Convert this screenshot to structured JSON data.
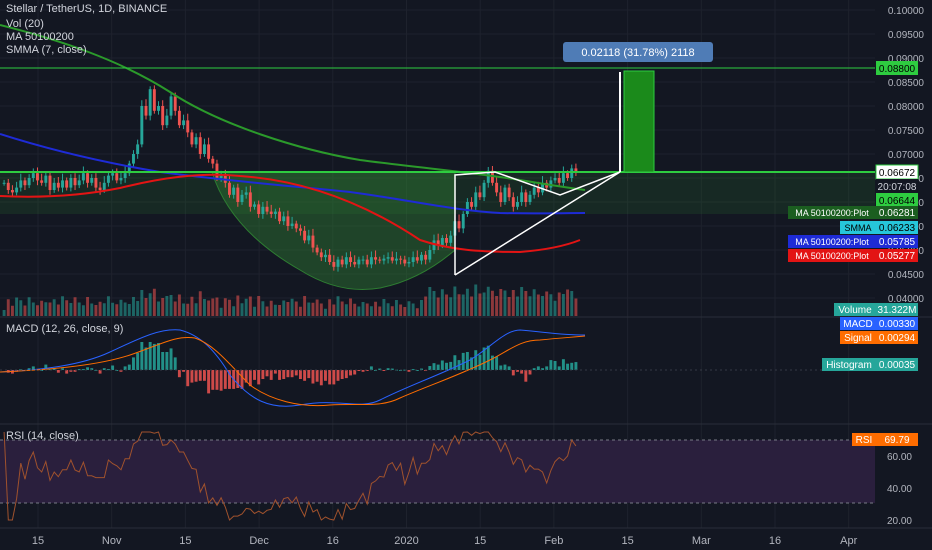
{
  "header": {
    "symbol_line": "Stellar / TetherUS, 1D, BINANCE",
    "vol_line": "Vol (20)",
    "ma_line": "MA 50100200",
    "smma_line": "SMMA (7, close)"
  },
  "macd_title": "MACD (12, 26, close, 9)",
  "rsi_title": "RSI (14, close)",
  "measure_tooltip": "0.02118 (31.78%) 2118",
  "colors": {
    "background": "#131722",
    "up": "#26a69a",
    "down": "#ef5350",
    "ma50": "#2b9a2b",
    "ma100": "#1e2bd6",
    "ma200": "#e31414",
    "resistance": "#2ecc40",
    "rsi_band": "#2a1f3d",
    "macd_line": "#2962ff",
    "signal_line": "#ff6d00"
  },
  "price_axis": {
    "ticks": [
      "0.10000",
      "0.09500",
      "0.09000",
      "0.08500",
      "0.08000",
      "0.07500",
      "0.07000",
      "0.06500",
      "0.06000",
      "0.05500",
      "0.05000",
      "0.04500",
      "0.04000"
    ]
  },
  "rsi_axis": {
    "ticks": [
      "60.00",
      "40.00",
      "20.00"
    ]
  },
  "time_axis": {
    "ticks": [
      "15",
      "Nov",
      "15",
      "Dec",
      "16",
      "2020",
      "15",
      "Feb",
      "15",
      "Mar",
      "16",
      "Apr"
    ]
  },
  "labels": {
    "target": "0.08800",
    "resistance": "0.06672",
    "countdown": "20:07:08",
    "current": "0.06644",
    "ma50_plot": "MA 50100200:Plot",
    "ma50_value": "0.06281",
    "smma": "SMMA",
    "smma_value": "0.06233",
    "ma100_plot": "MA 50100200:Plot",
    "ma100_value": "0.05785",
    "ma200_plot": "MA 50100200:Plot",
    "ma200_value": "0.05277",
    "volume": "Volume",
    "volume_value": "31.322M",
    "macd": "MACD",
    "macd_value": "0.00330",
    "signal": "Signal",
    "signal_value": "0.00294",
    "histogram": "Histogram",
    "histogram_value": "0.00035",
    "rsi": "RSI",
    "rsi_value": "69.79"
  },
  "chart_data": {
    "type": "candlestick",
    "title": "Stellar / TetherUS, 1D, BINANCE",
    "x_axis": [
      "Oct 15",
      "Nov",
      "Nov 15",
      "Dec",
      "Dec 16",
      "2020",
      "Jan 15",
      "Feb",
      "Feb 15",
      "Mar",
      "Mar 16",
      "Apr"
    ],
    "y_range": [
      0.04,
      0.1
    ],
    "closes": [
      0.064,
      0.0625,
      0.062,
      0.063,
      0.0645,
      0.0635,
      0.065,
      0.066,
      0.0645,
      0.064,
      0.0655,
      0.0625,
      0.064,
      0.063,
      0.0645,
      0.063,
      0.065,
      0.0635,
      0.0645,
      0.066,
      0.064,
      0.065,
      0.063,
      0.0625,
      0.064,
      0.0655,
      0.066,
      0.0645,
      0.065,
      0.066,
      0.068,
      0.07,
      0.072,
      0.08,
      0.078,
      0.0835,
      0.079,
      0.08,
      0.076,
      0.078,
      0.082,
      0.079,
      0.076,
      0.077,
      0.0745,
      0.072,
      0.0735,
      0.07,
      0.072,
      0.069,
      0.068,
      0.065,
      0.0655,
      0.064,
      0.0615,
      0.063,
      0.06,
      0.0615,
      0.062,
      0.059,
      0.0595,
      0.0575,
      0.059,
      0.058,
      0.0575,
      0.058,
      0.056,
      0.057,
      0.055,
      0.0555,
      0.0545,
      0.054,
      0.052,
      0.053,
      0.0505,
      0.0495,
      0.0485,
      0.049,
      0.0475,
      0.0465,
      0.048,
      0.047,
      0.0485,
      0.0475,
      0.047,
      0.048,
      0.048,
      0.047,
      0.0485,
      0.048,
      0.0478,
      0.0482,
      0.0485,
      0.0478,
      0.0482,
      0.048,
      0.0472,
      0.0475,
      0.0485,
      0.0478,
      0.049,
      0.048,
      0.05,
      0.052,
      0.051,
      0.0525,
      0.0515,
      0.053,
      0.056,
      0.0545,
      0.0575,
      0.06,
      0.059,
      0.062,
      0.061,
      0.064,
      0.0665,
      0.064,
      0.062,
      0.06,
      0.063,
      0.061,
      0.059,
      0.06,
      0.062,
      0.06,
      0.0615,
      0.063,
      0.062,
      0.064,
      0.063,
      0.0645,
      0.065,
      0.064,
      0.066,
      0.065,
      0.067,
      0.0664
    ],
    "volume_last": "31.322M",
    "moving_averages": [
      {
        "name": "MA 50100200:Plot",
        "value": 0.06281,
        "color": "#2b9a2b"
      },
      {
        "name": "SMMA",
        "value": 0.06233
      },
      {
        "name": "MA 50100200:Plot",
        "value": 0.05785,
        "color": "#1e2bd6"
      },
      {
        "name": "MA 50100200:Plot",
        "value": 0.05277,
        "color": "#e31414"
      }
    ],
    "resistance": 0.06672,
    "target": 0.088,
    "measurement": {
      "change": 0.02118,
      "percent": 31.78,
      "ticks": 2118
    },
    "macd": {
      "macd": 0.0033,
      "signal": 0.00294,
      "histogram": 0.00035
    },
    "rsi": {
      "value": 69.79,
      "y_ticks": [
        60,
        40,
        20
      ]
    }
  }
}
